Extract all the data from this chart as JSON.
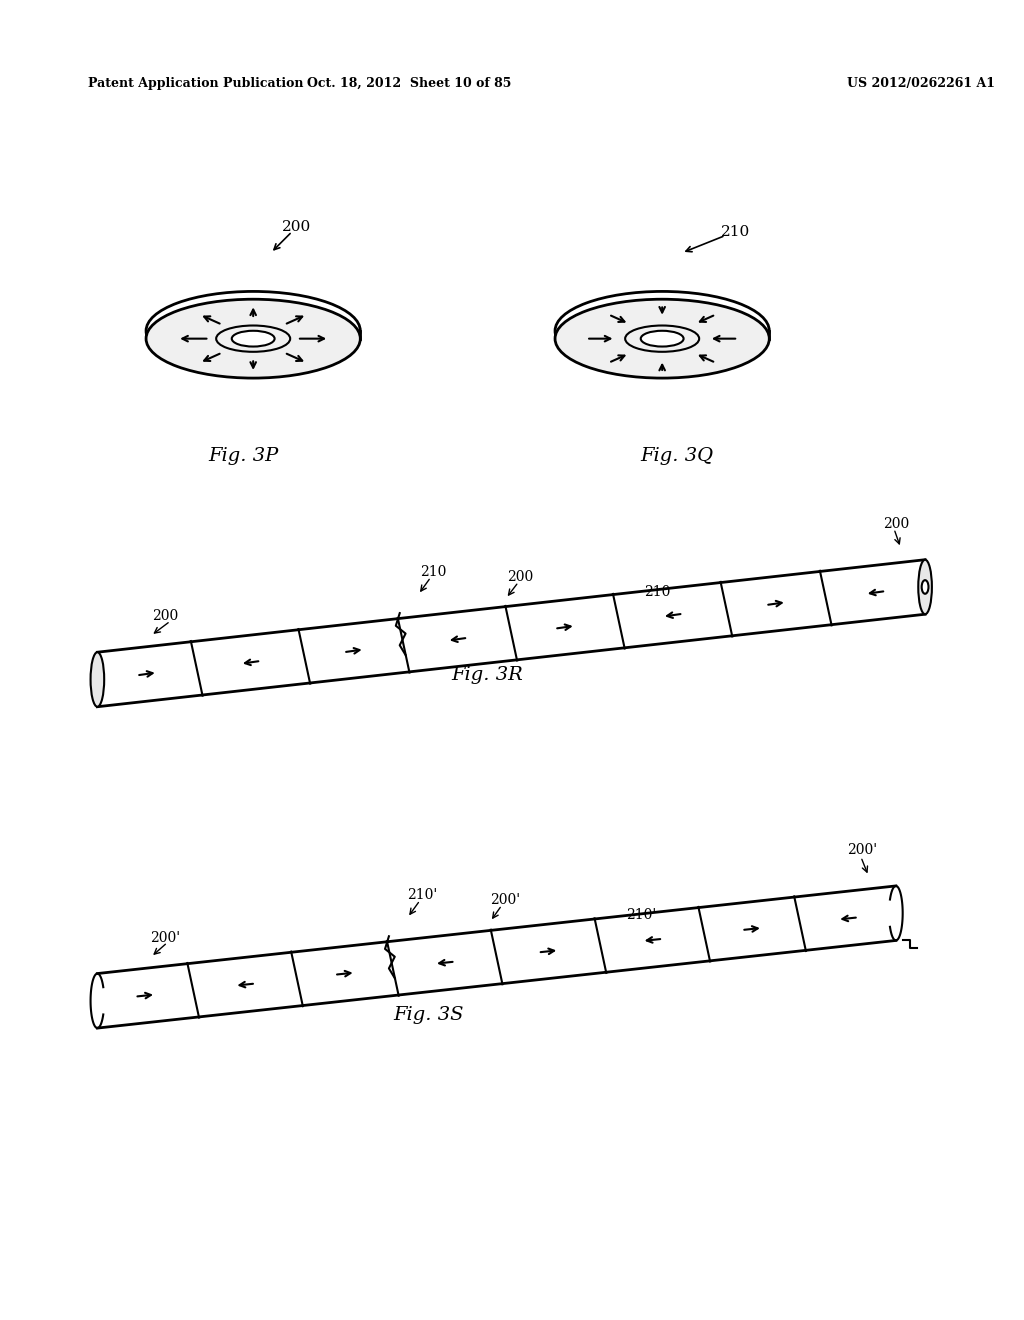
{
  "bg_color": "#ffffff",
  "header_left": "Patent Application Publication",
  "header_mid": "Oct. 18, 2012  Sheet 10 of 85",
  "header_right": "US 2012/0262261 A1",
  "fig3p_label": "Fig. 3P",
  "fig3q_label": "Fig. 3Q",
  "fig3r_label": "Fig. 3R",
  "fig3s_label": "Fig. 3S",
  "label_200": "200",
  "label_210": "210",
  "line_color": "#000000",
  "line_width": 1.5
}
